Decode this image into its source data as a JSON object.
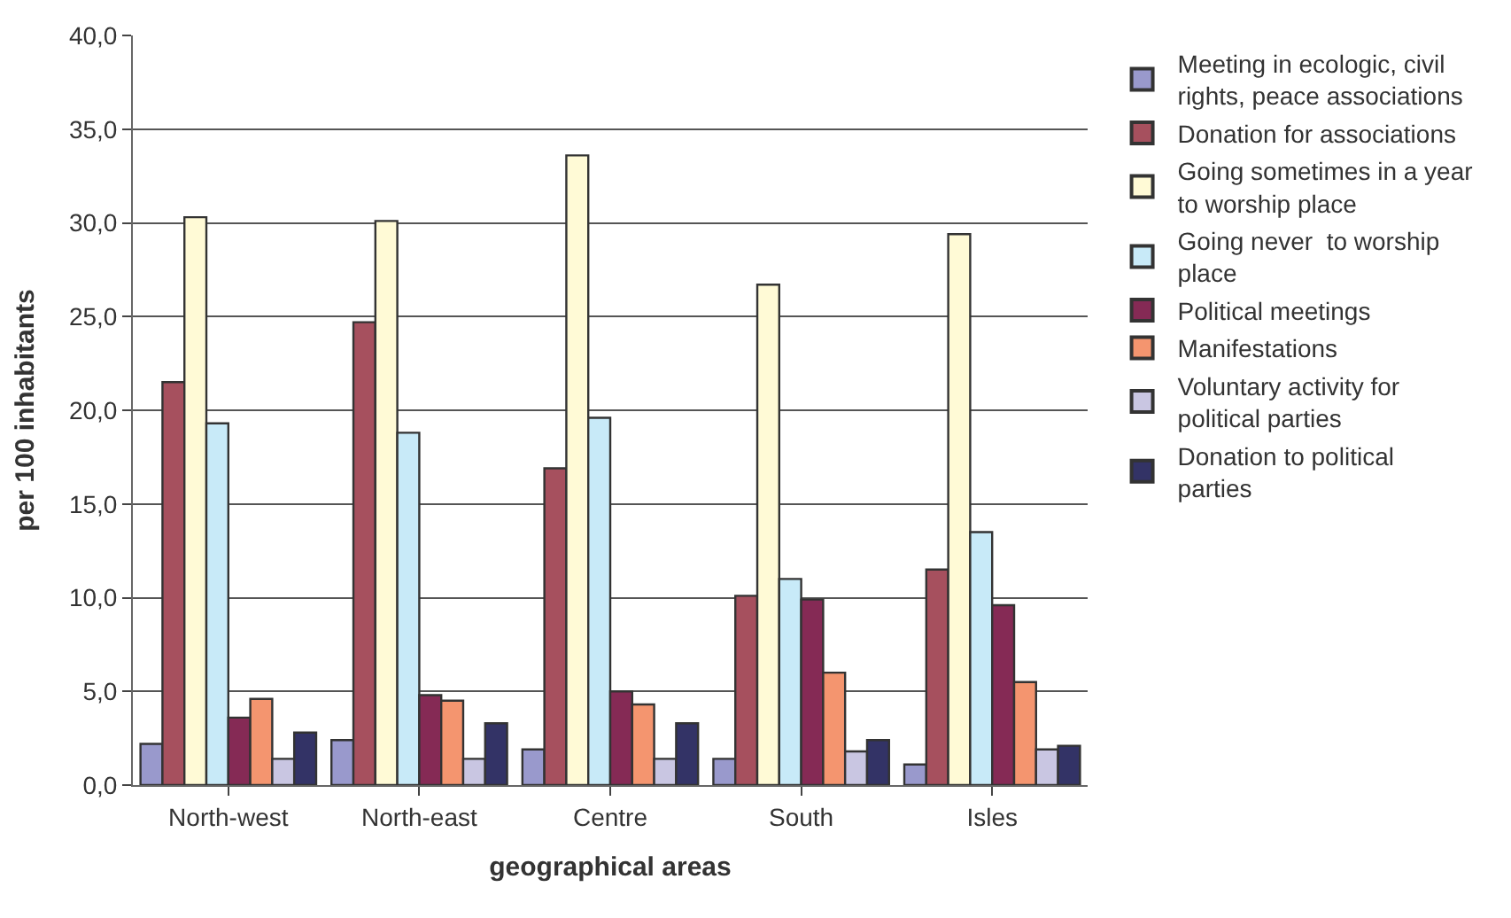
{
  "chart_data": {
    "type": "bar",
    "xlabel": "geographical areas",
    "ylabel": "per 100 inhabitants",
    "categories": [
      "North-west",
      "North-east",
      "Centre",
      "South",
      "Isles"
    ],
    "series": [
      {
        "name": "Meeting in ecologic, civil rights, peace associations",
        "color": "#9999cc",
        "values": [
          2.2,
          2.4,
          1.9,
          1.4,
          1.1
        ]
      },
      {
        "name": "Donation for associations",
        "color": "#a6505e",
        "values": [
          21.5,
          24.7,
          16.9,
          10.1,
          11.5
        ]
      },
      {
        "name": "Going sometimes in a year  to worship place",
        "color": "#fffad6",
        "values": [
          30.3,
          30.1,
          33.6,
          26.7,
          29.4
        ]
      },
      {
        "name": "Going never  to worship place",
        "color": "#c8eaf8",
        "values": [
          19.3,
          18.8,
          19.6,
          11.0,
          13.5
        ]
      },
      {
        "name": "Political meetings",
        "color": "#852a55",
        "values": [
          3.6,
          4.8,
          5.0,
          9.9,
          9.6
        ]
      },
      {
        "name": "Manifestations",
        "color": "#f4956f",
        "values": [
          4.6,
          4.5,
          4.3,
          6.0,
          5.5
        ]
      },
      {
        "name": "Voluntary activity for political parties",
        "color": "#c9c6e2",
        "values": [
          1.4,
          1.4,
          1.4,
          1.8,
          1.9
        ]
      },
      {
        "name": "Donation to political parties",
        "color": "#333366",
        "values": [
          2.8,
          3.3,
          3.3,
          2.4,
          2.1
        ]
      }
    ],
    "ylim": [
      0,
      40
    ],
    "yticks": [
      {
        "value": 0,
        "label": "0,0"
      },
      {
        "value": 5,
        "label": "5,0"
      },
      {
        "value": 10,
        "label": "10,0"
      },
      {
        "value": 15,
        "label": "15,0"
      },
      {
        "value": 20,
        "label": "20,0"
      },
      {
        "value": 25,
        "label": "25,0"
      },
      {
        "value": 30,
        "label": "30,0"
      },
      {
        "value": 35,
        "label": "35,0"
      },
      {
        "value": 40,
        "label": "40,0"
      }
    ],
    "grid": "y",
    "legend": "right"
  }
}
